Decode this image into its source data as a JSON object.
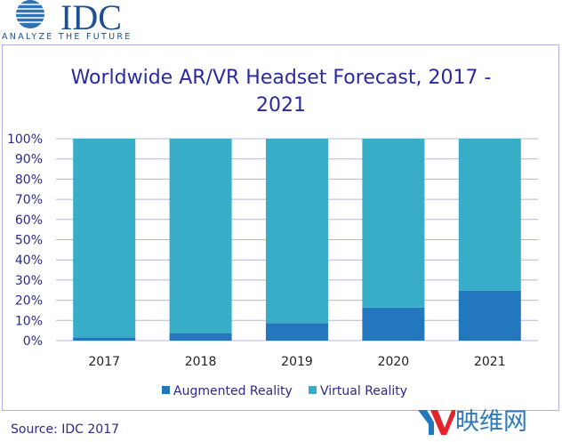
{
  "logo": {
    "name": "IDC",
    "tagline": "ANALYZE THE FUTURE"
  },
  "chart_data": {
    "type": "bar",
    "stacked": true,
    "title": "Worldwide AR/VR Headset Forecast, 2017 - 2021",
    "categories": [
      "2017",
      "2018",
      "2019",
      "2020",
      "2021"
    ],
    "series": [
      {
        "name": "Augmented Reality",
        "color": "#2277bd",
        "values": [
          1.5,
          3.7,
          8.7,
          16.4,
          24.8
        ]
      },
      {
        "name": "Virtual Reality",
        "color": "#37adc8",
        "values": [
          98.5,
          96.3,
          91.3,
          83.6,
          75.2
        ]
      }
    ],
    "ylim": [
      0,
      100
    ],
    "yticks": [
      "0%",
      "10%",
      "20%",
      "30%",
      "40%",
      "50%",
      "60%",
      "70%",
      "80%",
      "90%",
      "100%"
    ],
    "grid": true,
    "legend": "bottom"
  },
  "source": "Source: IDC 2017",
  "watermark": "映维网"
}
